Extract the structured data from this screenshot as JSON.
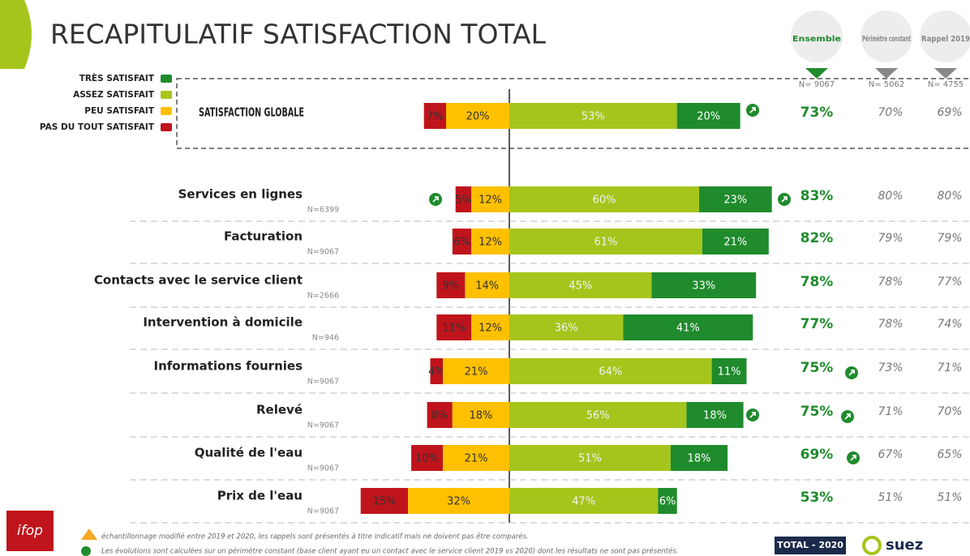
{
  "chart_data": {
    "type": "diverging-bar",
    "title": "RECAPITULATIF SATISFACTION TOTAL",
    "categories": [
      "SATISFACTION GLOBALE",
      "Services en lignes",
      "Facturation",
      "Contacts avec le service client",
      "Intervention à domicile",
      "Informations fournies",
      "Relevé",
      "Qualité de l'eau",
      "Prix de l'eau"
    ],
    "sample_sizes": [
      null,
      "N=6399",
      "N=9067",
      "N=2666",
      "N=946",
      "N=9067",
      "N=9067",
      "N=9067",
      "N=9067"
    ],
    "series": [
      {
        "name": "PAS DU TOUT SATISFAIT",
        "color": "#c0141c",
        "side": "negative",
        "order": 2,
        "values": [
          7,
          5,
          6,
          9,
          11,
          4,
          8,
          10,
          15
        ],
        "value_labels": [
          "7%",
          "5%",
          "6%",
          "9%",
          "11%",
          "4%",
          "8%",
          "10%",
          "15%"
        ]
      },
      {
        "name": "PEU SATISFAIT",
        "color": "#ffc000",
        "side": "negative",
        "order": 1,
        "values": [
          20,
          12,
          12,
          14,
          12,
          21,
          18,
          21,
          32
        ],
        "value_labels": [
          "20%",
          "12%",
          "12%",
          "14%",
          "12%",
          "21%",
          "18%",
          "21%",
          "32%"
        ]
      },
      {
        "name": "ASSEZ SATISFAIT",
        "color": "#a6c51c",
        "side": "positive",
        "order": 1,
        "values": [
          53,
          60,
          61,
          45,
          36,
          64,
          56,
          51,
          47
        ],
        "value_labels": [
          "53%",
          "60%",
          "61%",
          "45%",
          "36%",
          "64%",
          "56%",
          "51%",
          "47%"
        ]
      },
      {
        "name": "TRÈS SATISFAIT",
        "color": "#1f8b2c",
        "side": "positive",
        "order": 2,
        "values": [
          20,
          23,
          21,
          33,
          41,
          11,
          18,
          18,
          6
        ],
        "value_labels": [
          "20%",
          "23%",
          "21%",
          "33%",
          "41%",
          "11%",
          "18%",
          "18%",
          "6%"
        ]
      }
    ],
    "totals": [
      {
        "name": "Ensemble",
        "n": "N= 9067",
        "color": "#1f8b2c",
        "values": [
          73,
          83,
          82,
          78,
          77,
          75,
          75,
          69,
          53
        ],
        "value_labels": [
          "73%",
          "83%",
          "82%",
          "78%",
          "77%",
          "75%",
          "75%",
          "69%",
          "53%"
        ]
      },
      {
        "name": "Périmètre constant",
        "n": "N= 5062",
        "color": "#777777",
        "values": [
          70,
          80,
          79,
          78,
          78,
          73,
          71,
          67,
          51
        ],
        "value_labels": [
          "70%",
          "80%",
          "79%",
          "78%",
          "78%",
          "73%",
          "71%",
          "67%",
          "51%"
        ]
      },
      {
        "name": "Rappel 2019",
        "n": "N= 4755",
        "color": "#777777",
        "values": [
          69,
          80,
          79,
          77,
          74,
          71,
          70,
          65,
          51
        ],
        "value_labels": [
          "69%",
          "80%",
          "79%",
          "77%",
          "74%",
          "71%",
          "70%",
          "65%",
          "51%"
        ]
      }
    ],
    "footnotes": [
      "échantillonnage modifié entre 2019 et 2020, les rappels sont présentés à titre indicatif mais ne doivent pas être comparés.",
      "Les évolutions sont calculées sur un périmètre constant (base client ayant eu un contact avec le service client 2019 vs 2020) dont les résultats ne sont pas présentés."
    ],
    "badge": "TOTAL - 2020",
    "logos": [
      "ifop",
      "suez"
    ]
  }
}
